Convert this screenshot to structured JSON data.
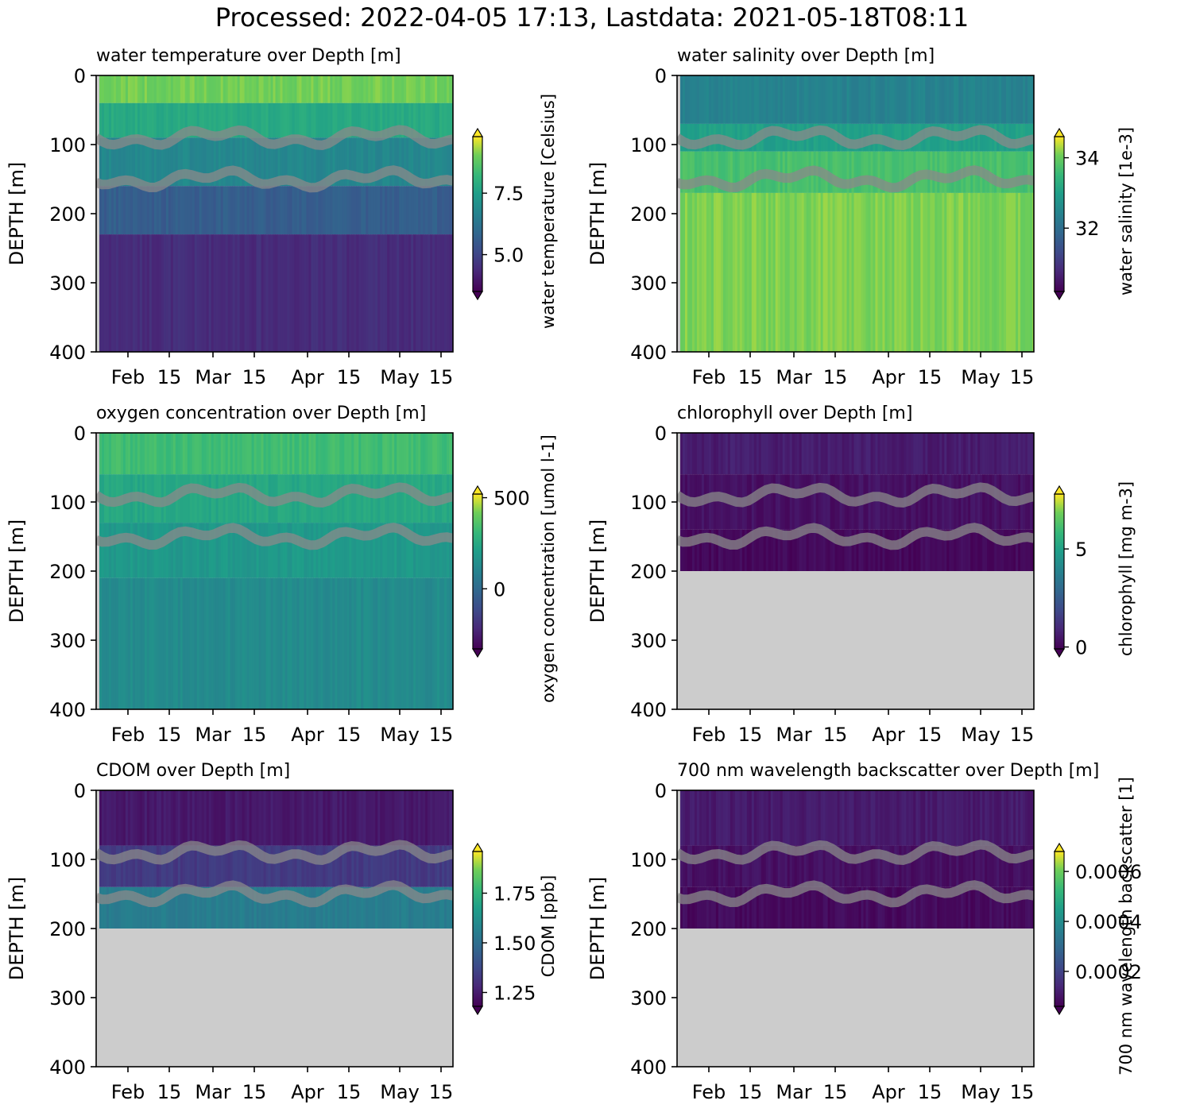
{
  "figure": {
    "suptitle": "Processed: 2022-04-05 17:13, Lastdata: 2021-05-18T08:11"
  },
  "chart_data": [
    {
      "type": "heatmap",
      "title": "water temperature over Depth [m]",
      "ylabel": "DEPTH [m]",
      "colorbar_label": "water temperature [Celsius]",
      "colormap": "viridis",
      "x_ticks": [
        "Feb",
        "15",
        "Mar",
        "15",
        "Apr",
        "15",
        "May",
        "15"
      ],
      "y_ticks": [
        0,
        100,
        200,
        300,
        400
      ],
      "ylim": [
        400,
        0
      ],
      "colorbar_ticks": [
        "5.0",
        "7.5"
      ],
      "vmin": 3.5,
      "vmax": 9.8,
      "colorbar_extend": "both",
      "depth_fill_limit_m": 400,
      "layers": [
        {
          "z": [
            0,
            40
          ],
          "value": 9.0
        },
        {
          "z": [
            40,
            90
          ],
          "value": 7.8
        },
        {
          "z": [
            90,
            160
          ],
          "value": 6.8
        },
        {
          "z": [
            160,
            230
          ],
          "value": 5.6
        },
        {
          "z": [
            230,
            400
          ],
          "value": 4.4
        }
      ],
      "isolines_m": [
        [
          55,
          90,
          120
        ],
        [
          125,
          150,
          175
        ]
      ]
    },
    {
      "type": "heatmap",
      "title": "water salinity over Depth [m]",
      "ylabel": "DEPTH [m]",
      "colorbar_label": "water salinity [1e-3]",
      "colormap": "viridis",
      "x_ticks": [
        "Feb",
        "15",
        "Mar",
        "15",
        "Apr",
        "15",
        "May",
        "15"
      ],
      "y_ticks": [
        0,
        100,
        200,
        300,
        400
      ],
      "ylim": [
        400,
        0
      ],
      "colorbar_ticks": [
        "32",
        "34"
      ],
      "vmin": 30.2,
      "vmax": 34.6,
      "colorbar_extend": "both",
      "depth_fill_limit_m": 400,
      "layers": [
        {
          "z": [
            0,
            70
          ],
          "value": 32.4
        },
        {
          "z": [
            70,
            110
          ],
          "value": 33.0
        },
        {
          "z": [
            110,
            170
          ],
          "value": 33.7
        },
        {
          "z": [
            170,
            400
          ],
          "value": 34.1
        }
      ],
      "isolines_m": [
        [
          55,
          90,
          120
        ],
        [
          125,
          150,
          175
        ]
      ]
    },
    {
      "type": "heatmap",
      "title": "oxygen concentration over Depth [m]",
      "ylabel": "DEPTH [m]",
      "colorbar_label": "oxygen concentration [umol l-1]",
      "colormap": "viridis",
      "x_ticks": [
        "Feb",
        "15",
        "Mar",
        "15",
        "Apr",
        "15",
        "May",
        "15"
      ],
      "y_ticks": [
        0,
        100,
        200,
        300,
        400
      ],
      "ylim": [
        400,
        0
      ],
      "colorbar_ticks": [
        "0",
        "500"
      ],
      "vmin": -330,
      "vmax": 520,
      "colorbar_extend": "both",
      "depth_fill_limit_m": 400,
      "layers": [
        {
          "z": [
            0,
            60
          ],
          "value": 330
        },
        {
          "z": [
            60,
            130
          ],
          "value": 240
        },
        {
          "z": [
            130,
            210
          ],
          "value": 180
        },
        {
          "z": [
            210,
            400
          ],
          "value": 130
        }
      ],
      "isolines_m": [
        [
          55,
          90,
          120
        ],
        [
          125,
          150,
          175
        ]
      ]
    },
    {
      "type": "heatmap",
      "title": "chlorophyll over Depth [m]",
      "ylabel": "DEPTH [m]",
      "colorbar_label": "chlorophyll [mg m-3]",
      "colormap": "viridis",
      "x_ticks": [
        "Feb",
        "15",
        "Mar",
        "15",
        "Apr",
        "15",
        "May",
        "15"
      ],
      "y_ticks": [
        0,
        100,
        200,
        300,
        400
      ],
      "ylim": [
        400,
        0
      ],
      "colorbar_ticks": [
        "0",
        "5"
      ],
      "vmin": -0.1,
      "vmax": 7.8,
      "colorbar_extend": "both",
      "depth_fill_limit_m": 200,
      "layers": [
        {
          "z": [
            0,
            60
          ],
          "value": 0.6
        },
        {
          "z": [
            60,
            140
          ],
          "value": 0.3
        },
        {
          "z": [
            140,
            200
          ],
          "value": 0.1
        }
      ],
      "isolines_m": [
        [
          55,
          90,
          120
        ],
        [
          125,
          150,
          175
        ]
      ]
    },
    {
      "type": "heatmap",
      "title": "CDOM over Depth [m]",
      "ylabel": "DEPTH [m]",
      "colorbar_label": "CDOM [ppb]",
      "colormap": "viridis",
      "x_ticks": [
        "Feb",
        "15",
        "Mar",
        "15",
        "Apr",
        "15",
        "May",
        "15"
      ],
      "y_ticks": [
        0,
        100,
        200,
        300,
        400
      ],
      "ylim": [
        400,
        0
      ],
      "colorbar_ticks": [
        "1.25",
        "1.50",
        "1.75"
      ],
      "vmin": 1.18,
      "vmax": 1.96,
      "colorbar_extend": "both",
      "depth_fill_limit_m": 200,
      "layers": [
        {
          "z": [
            0,
            80
          ],
          "value": 1.24
        },
        {
          "z": [
            80,
            140
          ],
          "value": 1.33
        },
        {
          "z": [
            140,
            200
          ],
          "value": 1.55
        }
      ],
      "isolines_m": [
        [
          55,
          90,
          120
        ],
        [
          125,
          150,
          175
        ]
      ]
    },
    {
      "type": "heatmap",
      "title": "700 nm wavelength backscatter over Depth [m]",
      "ylabel": "DEPTH [m]",
      "colorbar_label": "700 nm wavelength backscatter [1]",
      "colormap": "viridis",
      "x_ticks": [
        "Feb",
        "15",
        "Mar",
        "15",
        "Apr",
        "15",
        "May",
        "15"
      ],
      "y_ticks": [
        0,
        100,
        200,
        300,
        400
      ],
      "ylim": [
        400,
        0
      ],
      "colorbar_ticks": [
        "0.0002",
        "0.0004",
        "0.0006"
      ],
      "vmin": 6e-05,
      "vmax": 0.00068,
      "colorbar_extend": "both",
      "depth_fill_limit_m": 200,
      "layers": [
        {
          "z": [
            0,
            80
          ],
          "value": 0.00011
        },
        {
          "z": [
            80,
            140
          ],
          "value": 9e-05
        },
        {
          "z": [
            140,
            200
          ],
          "value": 8e-05
        }
      ],
      "isolines_m": [
        [
          55,
          90,
          120
        ],
        [
          125,
          150,
          175
        ]
      ]
    }
  ]
}
